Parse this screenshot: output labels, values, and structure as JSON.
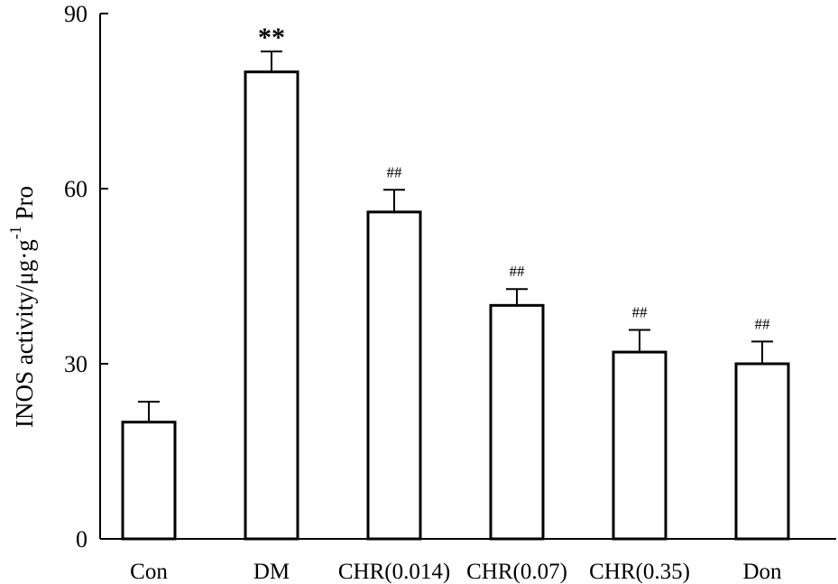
{
  "chart_data": {
    "type": "bar",
    "ylabel_main": "INOS activity/μg·g",
    "ylabel_sup": "-1",
    "ylabel_tail": " Pro",
    "categories": [
      "Con",
      "DM",
      "CHR(0.014)",
      "CHR(0.07)",
      "CHR(0.35)",
      "Don"
    ],
    "values": [
      20,
      80,
      56,
      40,
      32,
      30
    ],
    "errors": [
      3.5,
      3.5,
      3.8,
      2.8,
      3.8,
      3.8
    ],
    "annotations": [
      "",
      "**",
      "##",
      "##",
      "##",
      "##"
    ],
    "ylim": [
      0,
      90
    ],
    "yticks": [
      0,
      30,
      60,
      90
    ],
    "bar_fill": "#ffffff",
    "bar_stroke": "#000000"
  }
}
